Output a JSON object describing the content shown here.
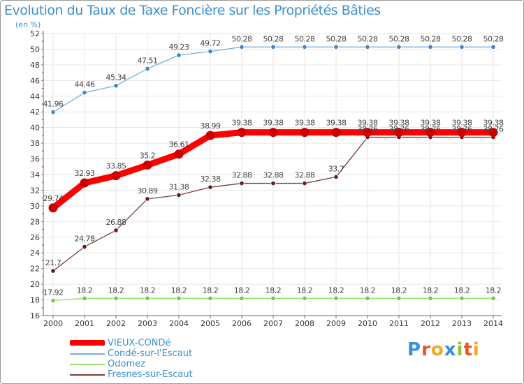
{
  "title": "Evolution du Taux de Taxe Foncière sur les Propriétés Bâties",
  "unit_label": "(en %)",
  "logo_text": "Proxiti",
  "chart_data": {
    "type": "line",
    "title": "Evolution du Taux de Taxe Foncière sur les Propriétés Bâties",
    "ylabel": "(en %)",
    "xlabel": "",
    "ylim": [
      16,
      52
    ],
    "y_ticks": [
      16,
      18,
      20,
      22,
      24,
      26,
      28,
      30,
      32,
      34,
      36,
      38,
      40,
      42,
      44,
      46,
      48,
      50,
      52
    ],
    "categories": [
      "2000",
      "2001",
      "2002",
      "2003",
      "2004",
      "2005",
      "2006",
      "2007",
      "2008",
      "2009",
      "2010",
      "2011",
      "2012",
      "2013",
      "2014"
    ],
    "series": [
      {
        "name": "VIEUX-CONDé",
        "color": "#ff0000",
        "marker": "#cc0000",
        "values": [
          29.74,
          32.93,
          33.85,
          35.2,
          36.61,
          38.99,
          39.38,
          39.38,
          39.38,
          39.38,
          39.38,
          39.38,
          39.38,
          39.38,
          39.38
        ],
        "labels": [
          "29.74",
          "32.93",
          "33.85",
          "35.2",
          "36.61",
          "38.99",
          "39.38",
          "39.38",
          "39.38",
          "39.38",
          "39.38",
          "39.38",
          "39.38",
          "39.38",
          "39.38"
        ]
      },
      {
        "name": "Condé-sur-l'Escaut",
        "color": "#7aaed9",
        "marker": "#3f84c4",
        "values": [
          41.96,
          44.46,
          45.34,
          47.51,
          49.23,
          49.72,
          50.28,
          50.28,
          50.28,
          50.28,
          50.28,
          50.28,
          50.28,
          50.28,
          50.28
        ],
        "labels": [
          "41.96",
          "44.46",
          "45.34",
          "47.51",
          "49.23",
          "49.72",
          "50.28",
          "50.28",
          "50.28",
          "50.28",
          "50.28",
          "50.28",
          "50.28",
          "50.28",
          "50.28"
        ]
      },
      {
        "name": "Odomez",
        "color": "#9be06a",
        "marker": "#79c64a",
        "values": [
          17.92,
          18.2,
          18.2,
          18.2,
          18.2,
          18.2,
          18.2,
          18.2,
          18.2,
          18.2,
          18.2,
          18.2,
          18.2,
          18.2,
          18.2
        ],
        "labels": [
          "17.92",
          "18.2",
          "18.2",
          "18.2",
          "18.2",
          "18.2",
          "18.2",
          "18.2",
          "18.2",
          "18.2",
          "18.2",
          "18.2",
          "18.2",
          "18.2",
          "18.2"
        ]
      },
      {
        "name": "Fresnes-sur-Escaut",
        "color": "#7a3a3a",
        "marker": "#5a1e1e",
        "values": [
          21.7,
          24.78,
          26.88,
          30.89,
          31.38,
          32.38,
          32.88,
          32.88,
          32.88,
          33.7,
          38.76,
          38.76,
          38.76,
          38.76,
          38.76
        ],
        "labels": [
          "21.7",
          "24.78",
          "26.88",
          "30.89",
          "31.38",
          "32.38",
          "32.88",
          "32.88",
          "32.88",
          "33.7",
          "38.76",
          "38.76",
          "38.76",
          "38.76",
          "38.76"
        ]
      }
    ]
  }
}
